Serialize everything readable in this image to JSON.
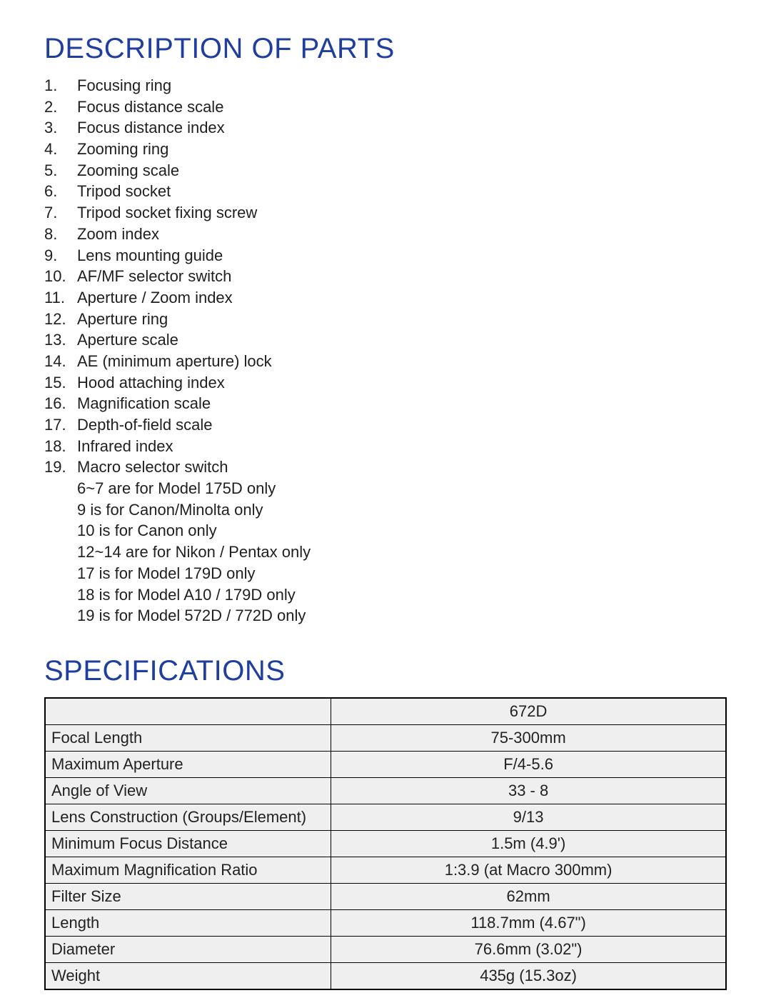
{
  "headings": {
    "parts": "DESCRIPTION OF PARTS",
    "specs": "SPECIFICATIONS"
  },
  "colors": {
    "heading": "#1f3e9e",
    "text": "#1f1f1f",
    "table_bg": "#efefef",
    "table_border": "#000000",
    "page_bg": "#ffffff"
  },
  "typography": {
    "heading_fontsize": 40,
    "body_fontsize": 22,
    "font_family": "Arial"
  },
  "parts": [
    {
      "n": "1.",
      "label": "Focusing ring"
    },
    {
      "n": "2.",
      "label": "Focus distance scale"
    },
    {
      "n": "3.",
      "label": "Focus distance index"
    },
    {
      "n": "4.",
      "label": "Zooming ring"
    },
    {
      "n": "5.",
      "label": "Zooming scale"
    },
    {
      "n": "6.",
      "label": "Tripod socket"
    },
    {
      "n": "7.",
      "label": "Tripod socket fixing screw"
    },
    {
      "n": "8.",
      "label": "Zoom index"
    },
    {
      "n": "9.",
      "label": "Lens mounting guide"
    },
    {
      "n": "10.",
      "label": "AF/MF selector switch"
    },
    {
      "n": "11.",
      "label": "Aperture / Zoom index"
    },
    {
      "n": "12.",
      "label": "Aperture ring"
    },
    {
      "n": "13.",
      "label": "Aperture scale"
    },
    {
      "n": "14.",
      "label": "AE (minimum aperture) lock"
    },
    {
      "n": "15.",
      "label": "Hood attaching index"
    },
    {
      "n": "16.",
      "label": "Magnification scale"
    },
    {
      "n": "17.",
      "label": "Depth-of-field scale"
    },
    {
      "n": "18.",
      "label": "Infrared index"
    },
    {
      "n": "19.",
      "label": "Macro selector switch"
    }
  ],
  "notes": [
    "6~7 are for Model 175D only",
    "9 is for Canon/Minolta only",
    "10 is for Canon only",
    "12~14 are for Nikon / Pentax only",
    "17 is for Model 179D only",
    "18 is for Model A10 / 179D only",
    "19 is for Model 572D / 772D only"
  ],
  "spec_table": {
    "model_header": "672D",
    "rows": [
      {
        "label": "Focal Length",
        "value": "75-300mm"
      },
      {
        "label": "Maximum Aperture",
        "value": "F/4-5.6"
      },
      {
        "label": "Angle of View",
        "value": "33 - 8"
      },
      {
        "label": "Lens Construction (Groups/Element)",
        "value": "9/13"
      },
      {
        "label": "Minimum Focus Distance",
        "value": "1.5m (4.9')"
      },
      {
        "label": "Maximum Magnification Ratio",
        "value": "1:3.9 (at Macro 300mm)"
      },
      {
        "label": "Filter Size",
        "value": "62mm"
      },
      {
        "label": "Length",
        "value": "118.7mm (4.67\")"
      },
      {
        "label": "Diameter",
        "value": "76.6mm (3.02\")"
      },
      {
        "label": "Weight",
        "value": "435g (15.3oz)"
      }
    ]
  }
}
